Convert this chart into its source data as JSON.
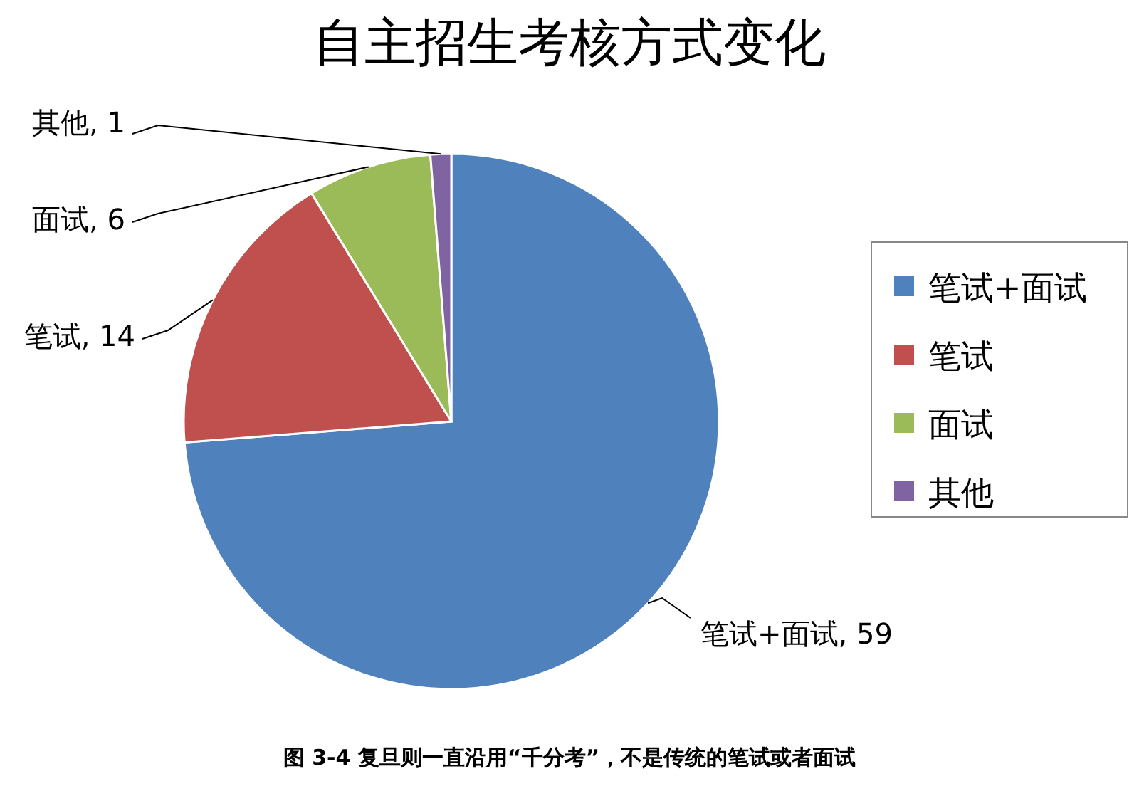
{
  "chart_data": {
    "type": "pie",
    "title": "自主招生考核方式变化",
    "categories": [
      "笔试+面试",
      "笔试",
      "面试",
      "其他"
    ],
    "values": [
      59,
      14,
      6,
      1
    ],
    "colors": [
      "#4f81bd",
      "#c0504d",
      "#9bbb59",
      "#8064a2"
    ],
    "value_labels": [
      ", 59",
      ", 14",
      ", 6",
      ", 1"
    ],
    "legend": "right",
    "annotations": [
      "图 3-4 复旦则一直沿用“千分考”，不是传统的笔试或者面试"
    ]
  }
}
